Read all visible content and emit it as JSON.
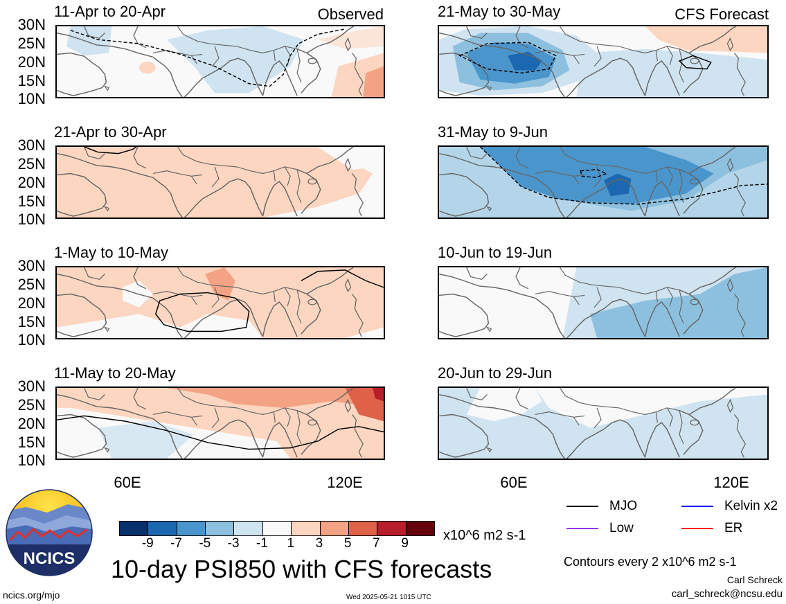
{
  "panels": [
    {
      "title": "11-Apr to 20-Apr",
      "tag": "Observed"
    },
    {
      "title": "21-Apr to 30-Apr",
      "tag": ""
    },
    {
      "title": "1-May to 10-May",
      "tag": ""
    },
    {
      "title": "11-May to 20-May",
      "tag": ""
    },
    {
      "title": "21-May to 30-May",
      "tag": "CFS Forecast"
    },
    {
      "title": "31-May to 9-Jun",
      "tag": ""
    },
    {
      "title": "10-Jun to 19-Jun",
      "tag": ""
    },
    {
      "title": "20-Jun to 29-Jun",
      "tag": ""
    }
  ],
  "lat_labels": [
    "30N",
    "25N",
    "20N",
    "15N",
    "10N"
  ],
  "lon_labels": [
    "60E",
    "120E"
  ],
  "colorbar": {
    "labels": [
      "-9",
      "-7",
      "-5",
      "-3",
      "-1",
      "1",
      "3",
      "5",
      "7",
      "9"
    ],
    "colors": [
      "#08306b",
      "#1c68b0",
      "#4a95cc",
      "#8cc0de",
      "#cfe3f0",
      "#f9f9f9",
      "#fcd6c1",
      "#f3a383",
      "#dd6248",
      "#b71e2b",
      "#67000d"
    ],
    "units": "x10^6 m2 s-1"
  },
  "legend": {
    "mjo": "MJO",
    "kelvin": "Kelvin x2",
    "low": "Low",
    "er": "ER",
    "colors": {
      "mjo": "#000000",
      "kelvin": "#0000ff",
      "low": "#9933ee",
      "er": "#ff0000"
    }
  },
  "title": "10-day PSI850 with CFS forecasts",
  "contour_note": "Contours every 2 x10^6 m2 s-1",
  "logo_text": "NCICS",
  "url": "ncics.org/mjo",
  "timestamp": "Wed 2025-05-21 1015 UTC",
  "author": "Carl Schreck",
  "email": "carl_schreck@ncsu.edu"
}
